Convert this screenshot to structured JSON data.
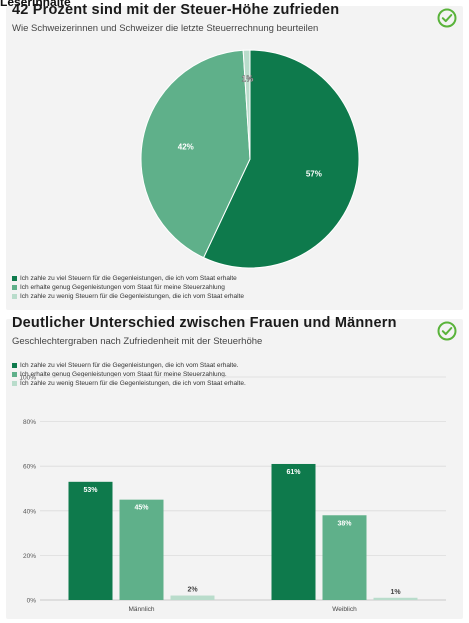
{
  "page_header": {
    "text": "Leserinhalte"
  },
  "colors": {
    "dark": "#0e7a4c",
    "mid": "#5fb08a",
    "light": "#b9dccb",
    "check": "#59b33a"
  },
  "pie_card": {
    "title": "42 Prozent sind mit der Steuer-Höhe zufrieden",
    "subtitle": "Wie Schweizerinnen und Schweizer die letzte Steuerrechnung beurteilen",
    "check_icon": "check-circle-icon",
    "legend": [
      "Ich zahle zu viel Steuern für die Gegenleistungen, die ich vom Staat erhalte",
      "Ich erhalte genug Gegenleistungen vom Staat für meine Steuerzahlung",
      "Ich zahle zu wenig Steuern für die Gegenleistungen, die ich vom Staat erhalte"
    ]
  },
  "bar_card": {
    "title": "Deutlicher Unterschied zwischen Frauen und Männern",
    "subtitle": "Geschlechtergraben nach Zufriedenheit mit der Steuerhöhe",
    "check_icon": "check-circle-icon",
    "legend": [
      "Ich zahle zu viel Steuern für die Gegenleistungen, die ich vom Staat erhalte.",
      "Ich erhalte genug Gegenleistungen vom Staat für meine Steuerzahlung.",
      "Ich zahle zu wenig Steuern für die Gegenleistungen, die ich vom Staat erhalte."
    ]
  },
  "chart_data": [
    {
      "type": "pie",
      "title": "42 Prozent sind mit der Steuer-Höhe zufrieden",
      "subtitle": "Wie Schweizerinnen und Schweizer die letzte Steuerrechnung beurteilen",
      "labels": [
        "Ich zahle zu viel Steuern für die Gegenleistungen, die ich vom Staat erhalte",
        "Ich erhalte genug Gegenleistungen vom Staat für meine Steuerzahlung",
        "Ich zahle zu wenig Steuern für die Gegenleistungen, die ich vom Staat erhalte"
      ],
      "values": [
        57,
        42,
        1
      ],
      "data_labels": [
        "57%",
        "42%",
        "1%"
      ],
      "colors": [
        "#0e7a4c",
        "#5fb08a",
        "#b9dccb"
      ],
      "legend_position": "bottom-left"
    },
    {
      "type": "bar",
      "title": "Deutlicher Unterschied zwischen Frauen und Männern",
      "subtitle": "Geschlechtergraben nach Zufriedenheit mit der Steuerhöhe",
      "categories": [
        "Männlich",
        "Weiblich"
      ],
      "series": [
        {
          "name": "Ich zahle zu viel Steuern für die Gegenleistungen, die ich vom Staat erhalte.",
          "values": [
            53,
            61
          ],
          "color": "#0e7a4c"
        },
        {
          "name": "Ich erhalte genug Gegenleistungen vom Staat für meine Steuerzahlung.",
          "values": [
            45,
            38
          ],
          "color": "#5fb08a"
        },
        {
          "name": "Ich zahle zu wenig Steuern für die Gegenleistungen, die ich vom Staat erhalte.",
          "values": [
            2,
            1
          ],
          "color": "#b9dccb"
        }
      ],
      "data_labels": [
        [
          "53%",
          "61%"
        ],
        [
          "45%",
          "38%"
        ],
        [
          "2%",
          "1%"
        ]
      ],
      "yticks": [
        "0%",
        "20%",
        "40%",
        "60%",
        "80%",
        "100%"
      ],
      "ylim": [
        0,
        100
      ],
      "grid": true,
      "legend_position": "top-left"
    }
  ]
}
